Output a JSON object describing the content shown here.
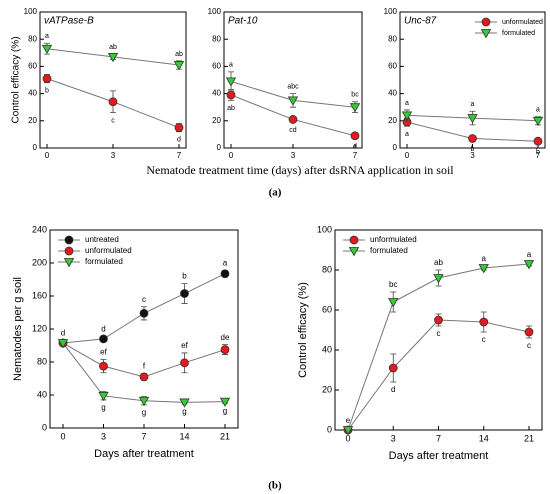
{
  "figure": {
    "shared_xlabel": "Nematode treatment time (days) after dsRNA application in soil",
    "panel_labels": [
      "(a)",
      "(b)"
    ]
  },
  "chart_data": [
    {
      "type": "line",
      "title": "vATPase-B",
      "ylabel": "Control efficacy (%)",
      "categories": [
        "0",
        "3",
        "7"
      ],
      "ylim": [
        0,
        100
      ],
      "yticks": [
        0,
        20,
        40,
        60,
        80,
        100
      ],
      "series": [
        {
          "name": "unformulated",
          "color": "#e41a1c",
          "marker": "circle",
          "values": [
            51,
            34,
            15
          ],
          "errors": [
            3,
            8,
            3
          ],
          "labels": [
            "b",
            "c",
            "d"
          ]
        },
        {
          "name": "formulated",
          "color": "#33cc33",
          "marker": "triangle-down",
          "values": [
            73,
            67,
            61
          ],
          "errors": [
            4,
            2,
            3
          ],
          "labels": [
            "a",
            "ab",
            "ab"
          ]
        }
      ]
    },
    {
      "type": "line",
      "title": "Pat-10",
      "categories": [
        "0",
        "3",
        "7"
      ],
      "ylim": [
        0,
        100
      ],
      "yticks": [
        0,
        20,
        40,
        60,
        80,
        100
      ],
      "series": [
        {
          "name": "unformulated",
          "color": "#e41a1c",
          "marker": "circle",
          "values": [
            39,
            21,
            9
          ],
          "errors": [
            4,
            2,
            2
          ],
          "labels": [
            "ab",
            "cd",
            "d"
          ]
        },
        {
          "name": "formulated",
          "color": "#33cc33",
          "marker": "triangle-down",
          "values": [
            49,
            35,
            30
          ],
          "errors": [
            7,
            5,
            4
          ],
          "labels": [
            "a",
            "abc",
            "bc"
          ]
        }
      ]
    },
    {
      "type": "line",
      "title": "Unc-87",
      "categories": [
        "0",
        "3",
        "7"
      ],
      "ylim": [
        0,
        100
      ],
      "yticks": [
        0,
        20,
        40,
        60,
        80,
        100
      ],
      "legend": "upper right",
      "series": [
        {
          "name": "unformulated",
          "color": "#e41a1c",
          "marker": "circle",
          "values": [
            19,
            7,
            5
          ],
          "errors": [
            3,
            2,
            2
          ],
          "labels": [
            "a",
            "b",
            "b"
          ]
        },
        {
          "name": "formulated",
          "color": "#33cc33",
          "marker": "triangle-down",
          "values": [
            24,
            22,
            20
          ],
          "errors": [
            4,
            5,
            3
          ],
          "labels": [
            "a",
            "a",
            "a"
          ]
        }
      ]
    },
    {
      "type": "line",
      "ylabel": "Nematodes per g soil",
      "xlabel": "Days after treatment",
      "categories": [
        "0",
        "3",
        "7",
        "14",
        "21"
      ],
      "ylim": [
        0,
        240
      ],
      "yticks": [
        0,
        40,
        80,
        120,
        160,
        200,
        240
      ],
      "legend": "upper left",
      "series": [
        {
          "name": "untreated",
          "color": "#111111",
          "marker": "circle",
          "values": [
            103,
            108,
            139,
            163,
            187
          ],
          "errors": [
            3,
            3,
            8,
            12,
            4
          ],
          "labels": [
            "d",
            "d",
            "c",
            "b",
            "a"
          ]
        },
        {
          "name": "unformulated",
          "color": "#e41a1c",
          "marker": "circle",
          "values": [
            103,
            75,
            62,
            79,
            95
          ],
          "errors": [
            3,
            8,
            4,
            12,
            6
          ],
          "labels": [
            null,
            "ef",
            "f",
            "ef",
            "de"
          ]
        },
        {
          "name": "formulated",
          "color": "#33cc33",
          "marker": "triangle-down",
          "values": [
            103,
            39,
            33,
            31,
            32
          ],
          "errors": [
            3,
            5,
            5,
            2,
            2
          ],
          "labels": [
            null,
            "g",
            "g",
            "g",
            "g"
          ]
        }
      ]
    },
    {
      "type": "line",
      "ylabel": "Control efficacy (%)",
      "xlabel": "Days after treatment",
      "categories": [
        "0",
        "3",
        "7",
        "14",
        "21"
      ],
      "ylim": [
        0,
        100
      ],
      "yticks": [
        0,
        20,
        40,
        60,
        80,
        100
      ],
      "legend": "upper left",
      "series": [
        {
          "name": "unformulated",
          "color": "#e41a1c",
          "marker": "circle",
          "values": [
            0,
            31,
            55,
            54,
            49
          ],
          "errors": [
            1,
            7,
            3,
            5,
            3
          ],
          "labels": [
            "e",
            "d",
            "c",
            "c",
            "c"
          ]
        },
        {
          "name": "formulated",
          "color": "#33cc33",
          "marker": "triangle-down",
          "values": [
            0,
            64,
            76,
            81,
            83
          ],
          "errors": [
            1,
            5,
            4,
            1,
            1
          ],
          "labels": [
            null,
            "bc",
            "ab",
            "a",
            "a"
          ]
        }
      ]
    }
  ]
}
